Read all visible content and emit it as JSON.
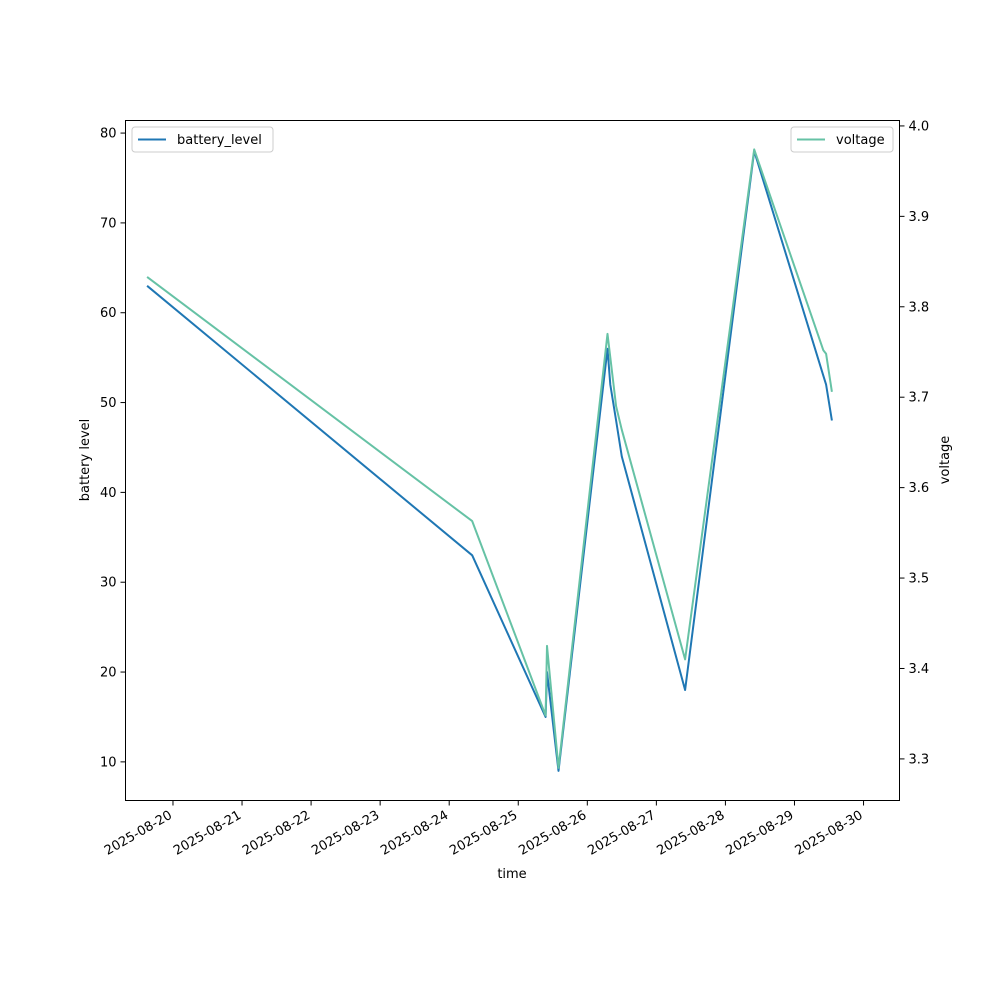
{
  "chart_data": {
    "type": "line",
    "title": "",
    "xlabel": "time",
    "ylabel": "battery level",
    "y2label": "voltage",
    "xlim": [
      "2025-08-19T07:30",
      "2025-08-30T12:30"
    ],
    "ylim": [
      5.7,
      81.4
    ],
    "y2lim": [
      3.254,
      4.006
    ],
    "x_ticks": [
      "2025-08-20",
      "2025-08-21",
      "2025-08-22",
      "2025-08-23",
      "2025-08-24",
      "2025-08-25",
      "2025-08-26",
      "2025-08-27",
      "2025-08-28",
      "2025-08-29",
      "2025-08-30"
    ],
    "y_ticks": [
      10,
      20,
      30,
      40,
      50,
      60,
      70,
      80
    ],
    "y2_ticks": [
      3.3,
      3.4,
      3.5,
      3.6,
      3.7,
      3.8,
      3.9,
      4.0
    ],
    "y2_tick_labels": [
      "3.3",
      "3.4",
      "3.5",
      "3.6",
      "3.7",
      "3.8",
      "3.9",
      "4.0"
    ],
    "grid": false,
    "series": [
      {
        "name": "battery_level",
        "axis": "left",
        "color": "#1f77b4",
        "legend_position": "upper-left",
        "x": [
          "2025-08-19T15:00",
          "2025-08-24T08:00",
          "2025-08-25T09:30",
          "2025-08-25T10:00",
          "2025-08-25T14:00",
          "2025-08-26T07:00",
          "2025-08-26T08:00",
          "2025-08-26T10:00",
          "2025-08-26T12:00",
          "2025-08-27T10:00",
          "2025-08-28T10:00",
          "2025-08-29T10:00",
          "2025-08-29T11:00",
          "2025-08-29T13:00"
        ],
        "y": [
          63,
          33,
          15,
          20,
          9,
          56,
          52,
          48,
          44,
          18,
          78,
          53,
          52,
          48
        ]
      },
      {
        "name": "voltage",
        "axis": "right",
        "color": "#66c2a5",
        "legend_position": "upper-right",
        "x": [
          "2025-08-19T15:00",
          "2025-08-24T08:00",
          "2025-08-25T09:30",
          "2025-08-25T10:00",
          "2025-08-25T14:00",
          "2025-08-26T07:00",
          "2025-08-26T08:00",
          "2025-08-26T10:00",
          "2025-08-26T12:00",
          "2025-08-27T10:00",
          "2025-08-28T10:00",
          "2025-08-29T10:00",
          "2025-08-29T11:00",
          "2025-08-29T13:00"
        ],
        "y": [
          3.833,
          3.563,
          3.348,
          3.425,
          3.29,
          3.77,
          3.744,
          3.69,
          3.664,
          3.41,
          3.974,
          3.752,
          3.748,
          3.706
        ]
      }
    ]
  }
}
